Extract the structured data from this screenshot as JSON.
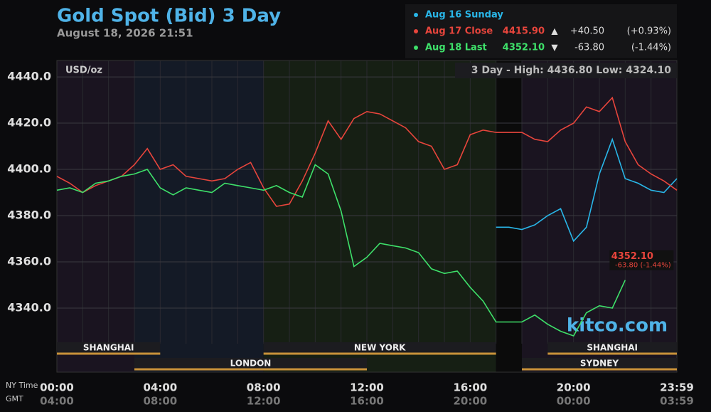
{
  "chart_data": {
    "type": "line",
    "title": "Gold Spot (Bid) 3 Day",
    "subtitle": "August 18, 2026 21:51",
    "unit_label": "USD/oz",
    "range_text": "3 Day - High: 4436.80  Low: 4324.10",
    "watermark": "kitco.com",
    "x_row_labels": [
      "NY Time",
      "GMT"
    ],
    "xlim": [
      0,
      24
    ],
    "ylim": [
      4312.3,
      4447.1
    ],
    "yticks": [
      {
        "value": 4340,
        "label": "4340.0"
      },
      {
        "value": 4360,
        "label": "4360.0"
      },
      {
        "value": 4380,
        "label": "4380.0"
      },
      {
        "value": 4400,
        "label": "4400.0"
      },
      {
        "value": 4420,
        "label": "4420.0"
      },
      {
        "value": 4440,
        "label": "4440.0"
      }
    ],
    "xticks": [
      {
        "value": 0,
        "label": "00:00"
      },
      {
        "value": 4,
        "label": "04:00"
      },
      {
        "value": 8,
        "label": "08:00"
      },
      {
        "value": 12,
        "label": "12:00"
      },
      {
        "value": 16,
        "label": "16:00"
      },
      {
        "value": 20,
        "label": "20:00"
      },
      {
        "value": 24,
        "label": "23:59"
      }
    ],
    "xticks_gmt": [
      {
        "value": 0,
        "label": "04:00"
      },
      {
        "value": 4,
        "label": "08:00"
      },
      {
        "value": 8,
        "label": "12:00"
      },
      {
        "value": 12,
        "label": "16:00"
      },
      {
        "value": 16,
        "label": "20:00"
      },
      {
        "value": 20,
        "label": "00:00"
      },
      {
        "value": 24,
        "label": "03:59"
      }
    ],
    "grid": true,
    "sessions": [
      {
        "name": "SHANGHAI",
        "start": 0,
        "end": 4,
        "row": 0
      },
      {
        "name": "NEW YORK",
        "start": 8,
        "end": 17,
        "row": 0
      },
      {
        "name": "SHANGHAI",
        "start": 19,
        "end": 24,
        "row": 0
      },
      {
        "name": "LONDON",
        "start": 3,
        "end": 12,
        "row": 1
      },
      {
        "name": "SYDNEY",
        "start": 18,
        "end": 24,
        "row": 1
      }
    ],
    "x": [
      0,
      0.5,
      1,
      1.5,
      2,
      2.5,
      3,
      3.5,
      4,
      4.5,
      5,
      5.5,
      6,
      6.5,
      7,
      7.5,
      8,
      8.5,
      9,
      9.5,
      10,
      10.5,
      11,
      11.5,
      12,
      12.5,
      13,
      13.5,
      14,
      14.5,
      15,
      15.5,
      16,
      16.5,
      17,
      17.5,
      18,
      18.5,
      19,
      19.5,
      20,
      20.5,
      21,
      21.5,
      22,
      22.5,
      23,
      23.5,
      24
    ],
    "series": [
      {
        "name": "Aug 16 Sunday",
        "color": "#29b6e8",
        "price": "",
        "change": "",
        "change_pct": "",
        "values": [
          null,
          null,
          null,
          null,
          null,
          null,
          null,
          null,
          null,
          null,
          null,
          null,
          null,
          null,
          null,
          null,
          null,
          null,
          null,
          null,
          null,
          null,
          null,
          null,
          null,
          null,
          null,
          null,
          null,
          null,
          null,
          null,
          null,
          null,
          4375,
          4375,
          4374,
          4376,
          4380,
          4383,
          4369,
          4375,
          4398,
          4413,
          4396,
          4394,
          4391,
          4390,
          4396
        ]
      },
      {
        "name": "Aug 17 Close",
        "color": "#e8453c",
        "price": "4415.90",
        "change": "+40.50",
        "change_pct": "(+0.93%)",
        "values": [
          4397,
          4394,
          4390,
          4393,
          4395,
          4397,
          4402,
          4409,
          4400,
          4402,
          4397,
          4396,
          4395,
          4396,
          4400,
          4403,
          4392,
          4384,
          4385,
          4395,
          4407,
          4421,
          4413,
          4422,
          4425,
          4424,
          4421,
          4418,
          4412,
          4410,
          4400,
          4402,
          4415,
          4417,
          4416,
          4416,
          4416,
          4413,
          4412,
          4417,
          4420,
          4427,
          4425,
          4431,
          4412,
          4402,
          4398,
          4395,
          4391
        ]
      },
      {
        "name": "Aug 18 Last",
        "color": "#3ee06a",
        "price": "4352.10",
        "change": "-63.80",
        "change_pct": "(-1.44%)",
        "values": [
          4391,
          4392,
          4390,
          4394,
          4395,
          4397,
          4398,
          4400,
          4392,
          4389,
          4392,
          4391,
          4390,
          4394,
          4393,
          4392,
          4391,
          4393,
          4390,
          4388,
          4402,
          4398,
          4382,
          4358,
          4362,
          4368,
          4367,
          4366,
          4364,
          4357,
          4355,
          4356,
          4349,
          4343,
          4334,
          4334,
          4334,
          4337,
          4333,
          4330,
          4328,
          4338,
          4341,
          4340,
          4352.1,
          null,
          null,
          null,
          null
        ]
      }
    ],
    "last_label": {
      "price": "4352.10",
      "change": "-63.80 (-1.44%)"
    }
  }
}
